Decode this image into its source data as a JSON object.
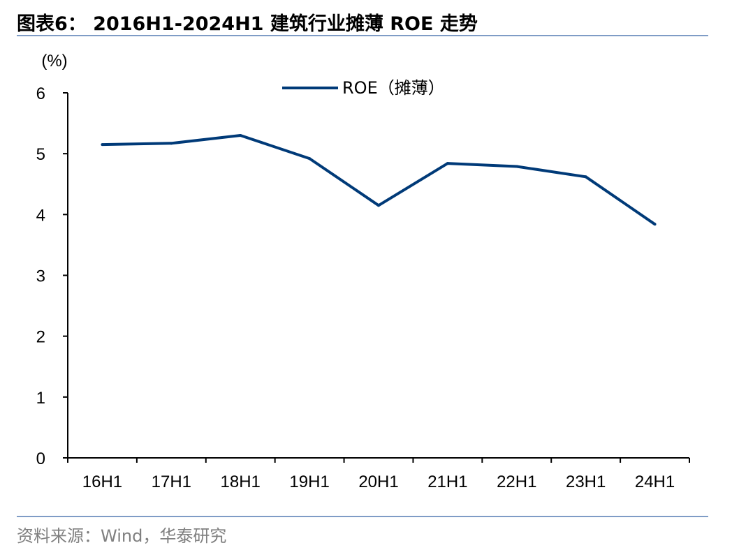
{
  "header": {
    "title": "图表6： 2016H1-2024H1 建筑行业摊薄 ROE 走势"
  },
  "footer": {
    "source": "资料来源：Wind，华泰研究"
  },
  "chart_data": {
    "type": "line",
    "categories": [
      "16H1",
      "17H1",
      "18H1",
      "19H1",
      "20H1",
      "21H1",
      "22H1",
      "23H1",
      "24H1"
    ],
    "series": [
      {
        "name": "ROE（摊薄）",
        "color": "#003a78",
        "values": [
          5.15,
          5.17,
          5.3,
          4.92,
          4.15,
          4.84,
          4.79,
          4.62,
          3.84
        ]
      }
    ],
    "unit_label": "(%)",
    "ylim": [
      0,
      6
    ],
    "yticks": [
      "0",
      "1",
      "2",
      "3",
      "4",
      "5",
      "6"
    ],
    "grid": false,
    "legend_position": "top-center"
  }
}
